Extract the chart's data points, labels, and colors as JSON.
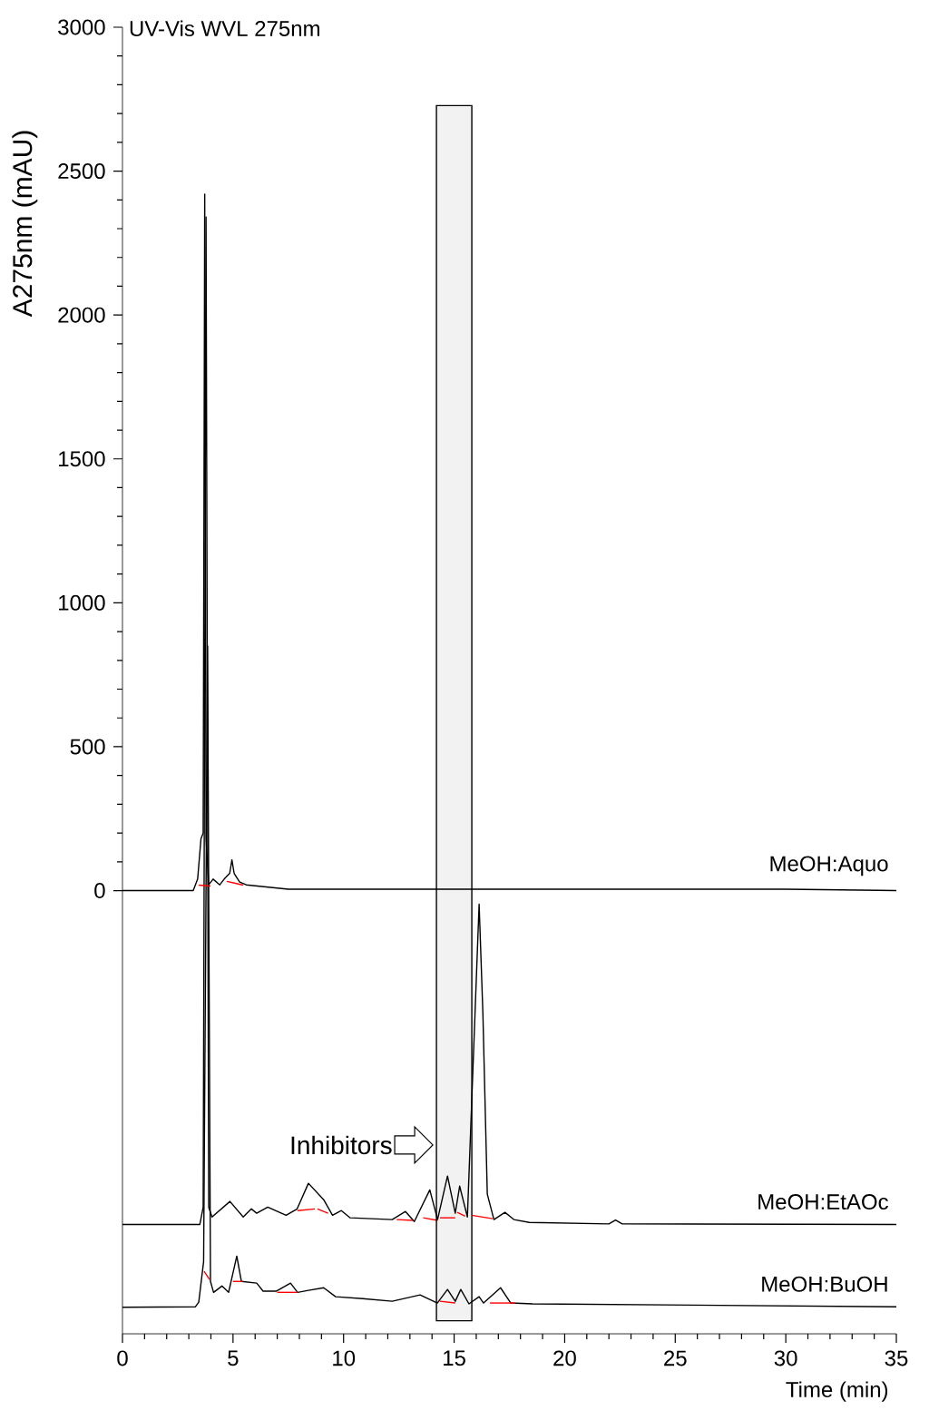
{
  "chart_data": {
    "type": "line",
    "title": "UV-Vis WVL 275nm",
    "xlabel": "Time (min)",
    "ylabel": "A275nm (mAU)",
    "xlim": [
      0,
      35
    ],
    "xticks": [
      0,
      5,
      10,
      15,
      20,
      25,
      30,
      35
    ],
    "ylim": [
      -1540,
      3000
    ],
    "yticks": [
      0,
      500,
      1000,
      1500,
      2000,
      2500,
      3000
    ],
    "grid": false,
    "series": [
      {
        "name": "MeOH:Aquo",
        "color": "#000000",
        "x": [
          0,
          3.2,
          3.4,
          3.55,
          3.65,
          3.72,
          3.78,
          3.9,
          4.1,
          4.4,
          4.6,
          4.85,
          4.95,
          5.05,
          5.3,
          5.6,
          7.5,
          30,
          35
        ],
        "values": [
          0,
          0,
          40,
          180,
          200,
          2420,
          180,
          20,
          40,
          20,
          40,
          60,
          107,
          60,
          30,
          20,
          5,
          5,
          0
        ]
      },
      {
        "name": "MeOH:EtAOc",
        "color": "#000000",
        "x": [
          0,
          3.5,
          3.65,
          3.78,
          3.9,
          4.05,
          4.86,
          5.46,
          5.83,
          6.07,
          6.57,
          7.4,
          7.9,
          8.41,
          9.1,
          9.5,
          9.9,
          10.3,
          12.2,
          12.8,
          13.2,
          13.9,
          14.25,
          14.7,
          15.05,
          15.25,
          15.6,
          16.13,
          16.3,
          16.5,
          16.8,
          17.3,
          17.7,
          18.4,
          22.0,
          22.3,
          22.6,
          35
        ],
        "values": [
          -1160,
          -1160,
          -1100,
          2340,
          -1100,
          -1134,
          -1080,
          -1134,
          -1106,
          -1121,
          -1100,
          -1128,
          -1106,
          -1017,
          -1074,
          -1128,
          -1112,
          -1137,
          -1143,
          -1115,
          -1150,
          -1040,
          -1143,
          -992,
          -1121,
          -1027,
          -1134,
          -47,
          -425,
          -1055,
          -1143,
          -1118,
          -1143,
          -1153,
          -1158,
          -1145,
          -1158,
          -1160
        ]
      },
      {
        "name": "MeOH:BuOH",
        "color": "#000000",
        "x": [
          0,
          3.3,
          3.45,
          3.67,
          3.85,
          3.98,
          4.12,
          4.5,
          4.8,
          5.17,
          5.38,
          6.07,
          6.36,
          6.95,
          7.6,
          7.92,
          8.41,
          9.1,
          9.64,
          10.87,
          12.2,
          13.46,
          14.24,
          14.7,
          15.05,
          15.3,
          15.67,
          16.13,
          16.33,
          17.1,
          17.56,
          18.55,
          35
        ],
        "values": [
          -1448,
          -1446,
          -1430,
          -1289,
          850,
          -1358,
          -1396,
          -1374,
          -1396,
          -1270,
          -1358,
          -1364,
          -1392,
          -1392,
          -1364,
          -1396,
          -1389,
          -1380,
          -1411,
          -1418,
          -1427,
          -1405,
          -1433,
          -1386,
          -1427,
          -1386,
          -1436,
          -1411,
          -1433,
          -1380,
          -1433,
          -1436,
          -1446
        ]
      },
      {
        "color": "#ff0000",
        "x": [
          3.45,
          3.98
        ],
        "values": [
          19,
          16
        ]
      },
      {
        "color": "#ff0000",
        "x": [
          4.72,
          5.46
        ],
        "values": [
          32,
          19
        ]
      },
      {
        "color": "#ff0000",
        "x": [
          7.92,
          8.7
        ],
        "values": [
          -1112,
          -1106
        ]
      },
      {
        "color": "#ff0000",
        "x": [
          8.82,
          9.3
        ],
        "values": [
          -1106,
          -1121
        ]
      },
      {
        "color": "#ff0000",
        "x": [
          12.4,
          13.13
        ],
        "values": [
          -1143,
          -1146
        ]
      },
      {
        "color": "#ff0000",
        "x": [
          13.6,
          14.25
        ],
        "values": [
          -1137,
          -1146
        ]
      },
      {
        "color": "#ff0000",
        "x": [
          14.36,
          15.05
        ],
        "values": [
          -1137,
          -1137
        ]
      },
      {
        "color": "#ff0000",
        "x": [
          15.14,
          15.5
        ],
        "values": [
          -1118,
          -1131
        ]
      },
      {
        "color": "#ff0000",
        "x": [
          15.8,
          16.74
        ],
        "values": [
          -1128,
          -1140
        ]
      },
      {
        "color": "#ff0000",
        "x": [
          3.69,
          3.94
        ],
        "values": [
          -1323,
          -1351
        ]
      },
      {
        "color": "#ff0000",
        "x": [
          5.0,
          5.43
        ],
        "values": [
          -1358,
          -1358
        ]
      },
      {
        "color": "#ff0000",
        "x": [
          7.0,
          7.92
        ],
        "values": [
          -1396,
          -1396
        ]
      },
      {
        "color": "#ff0000",
        "x": [
          14.36,
          15.05
        ],
        "values": [
          -1427,
          -1433
        ]
      },
      {
        "color": "#ff0000",
        "x": [
          16.62,
          17.77
        ],
        "values": [
          -1433,
          -1433
        ]
      }
    ],
    "bands": [
      {
        "axis": "x",
        "from": 14.2,
        "to": 15.8,
        "color": "#f2f2f2"
      }
    ],
    "annotations": [
      "Inhibitors"
    ]
  }
}
